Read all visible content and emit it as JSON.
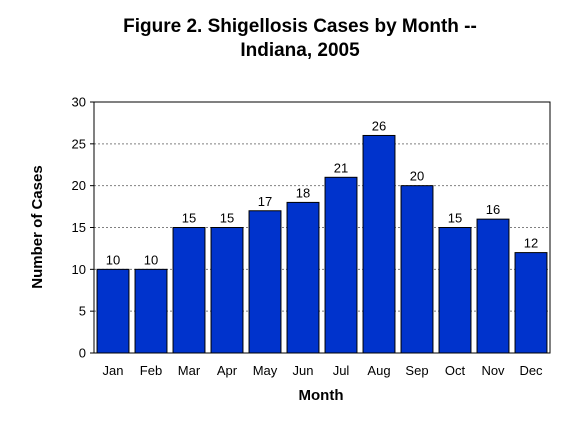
{
  "title_line1": "Figure 2.  Shigellosis Cases by Month --",
  "title_line2": "Indiana, 2005",
  "chart_data": {
    "type": "bar",
    "title": "Figure 2.  Shigellosis Cases by Month -- Indiana, 2005",
    "xlabel": "Month",
    "ylabel": "Number of Cases",
    "categories": [
      "Jan",
      "Feb",
      "Mar",
      "Apr",
      "May",
      "Jun",
      "Jul",
      "Aug",
      "Sep",
      "Oct",
      "Nov",
      "Dec"
    ],
    "values": [
      10,
      10,
      15,
      15,
      17,
      18,
      21,
      26,
      20,
      15,
      16,
      12
    ],
    "ylim": [
      0,
      30
    ],
    "yticks": [
      0,
      5,
      10,
      15,
      20,
      25,
      30
    ],
    "grid": true,
    "legend": "none",
    "bar_color": "#0033CC"
  }
}
